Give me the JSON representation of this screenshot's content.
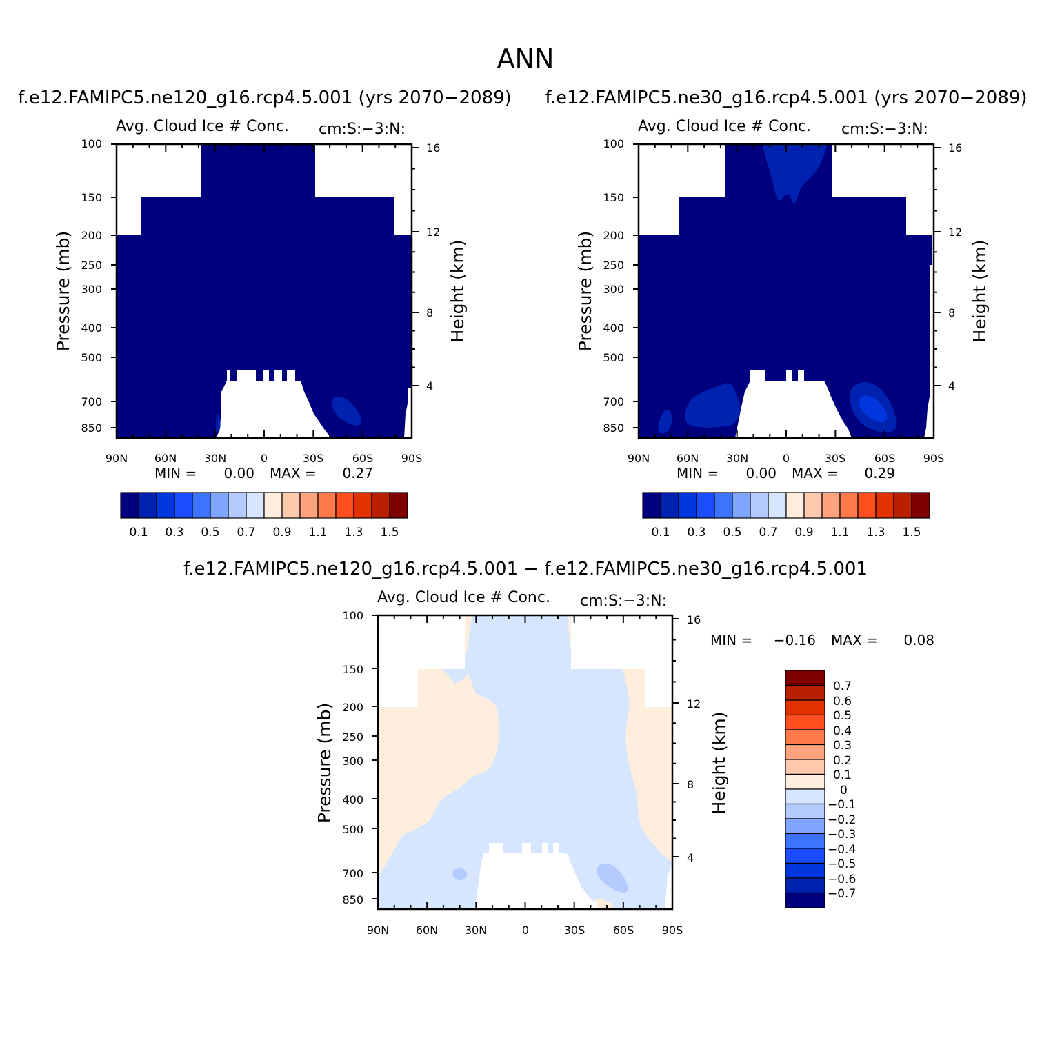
{
  "main_title": "ANN",
  "colors": {
    "palette_abs": [
      "#00007f",
      "#0022b0",
      "#0036dd",
      "#1b4cff",
      "#3c73ff",
      "#7ea5ff",
      "#b5cbff",
      "#d6e6ff",
      "#ffeedd",
      "#ffc9ae",
      "#ffa37f",
      "#ff7a4b",
      "#ff4f1f",
      "#e13200",
      "#b82000",
      "#7f0000"
    ],
    "palette_diff": [
      "#00007f",
      "#0022b0",
      "#0036dd",
      "#1b4cff",
      "#3c73ff",
      "#7ea5ff",
      "#b5cbff",
      "#d6e6ff",
      "#ffeedd",
      "#ffc9ae",
      "#ffa37f",
      "#ff7a4b",
      "#ff4f1f",
      "#e13200",
      "#b82000",
      "#7f0000"
    ]
  },
  "chart_data": [
    {
      "type": "heatmap",
      "case_title": "f.e12.FAMIPC5.ne120_g16.rcp4.5.001 (yrs 2070-2089)",
      "variable": "Avg. Cloud Ice # Conc.",
      "units": "cm:S:-3:N:",
      "ylabel": "Pressure (mb)",
      "ylabel_right": "Height (km)",
      "x_ticks": [
        "90N",
        "60N",
        "30N",
        "0",
        "30S",
        "60S",
        "90S"
      ],
      "y_ticks": [
        "100",
        "150",
        "200",
        "250",
        "300",
        "400",
        "500",
        "700",
        "850"
      ],
      "y_right_ticks": [
        "16",
        "12",
        "8",
        "4"
      ],
      "ylim": [
        1000,
        100
      ],
      "xlim": [
        90,
        -90
      ],
      "stats": {
        "min_label": "MIN =",
        "min": "0.00",
        "max_label": "MAX =",
        "max": "0.27"
      },
      "colorbar_labels": [
        "0.1",
        "0.3",
        "0.5",
        "0.7",
        "0.9",
        "1.1",
        "1.3",
        "1.5"
      ]
    },
    {
      "type": "heatmap",
      "case_title": "f.e12.FAMIPC5.ne30_g16.rcp4.5.001 (yrs 2070-2089)",
      "variable": "Avg. Cloud Ice # Conc.",
      "units": "cm:S:-3:N:",
      "ylabel": "Pressure (mb)",
      "ylabel_right": "Height (km)",
      "x_ticks": [
        "90N",
        "60N",
        "30N",
        "0",
        "30S",
        "60S",
        "90S"
      ],
      "y_ticks": [
        "100",
        "150",
        "200",
        "250",
        "300",
        "400",
        "500",
        "700",
        "850"
      ],
      "y_right_ticks": [
        "16",
        "12",
        "8",
        "4"
      ],
      "ylim": [
        1000,
        100
      ],
      "xlim": [
        90,
        -90
      ],
      "stats": {
        "min_label": "MIN =",
        "min": "0.00",
        "max_label": "MAX =",
        "max": "0.29"
      },
      "colorbar_labels": [
        "0.1",
        "0.3",
        "0.5",
        "0.7",
        "0.9",
        "1.1",
        "1.3",
        "1.5"
      ]
    },
    {
      "type": "heatmap",
      "case_title": "f.e12.FAMIPC5.ne120_g16.rcp4.5.001 - f.e12.FAMIPC5.ne30_g16.rcp4.5.001",
      "variable": "Avg. Cloud Ice # Conc.",
      "units": "cm:S:-3:N:",
      "ylabel": "Pressure (mb)",
      "ylabel_right": "Height (km)",
      "x_ticks": [
        "90N",
        "60N",
        "30N",
        "0",
        "30S",
        "60S",
        "90S"
      ],
      "y_ticks": [
        "100",
        "150",
        "200",
        "250",
        "300",
        "400",
        "500",
        "700",
        "850"
      ],
      "y_right_ticks": [
        "16",
        "12",
        "8",
        "4"
      ],
      "ylim": [
        1000,
        100
      ],
      "xlim": [
        90,
        -90
      ],
      "stats": {
        "min_label": "MIN =",
        "min": "-0.16",
        "max_label": "MAX =",
        "max": "0.08"
      },
      "colorbar_labels": [
        "0.7",
        "0.6",
        "0.5",
        "0.4",
        "0.3",
        "0.2",
        "0.1",
        "0",
        "-0.1",
        "-0.2",
        "-0.3",
        "-0.4",
        "-0.5",
        "-0.6",
        "-0.7"
      ]
    }
  ]
}
